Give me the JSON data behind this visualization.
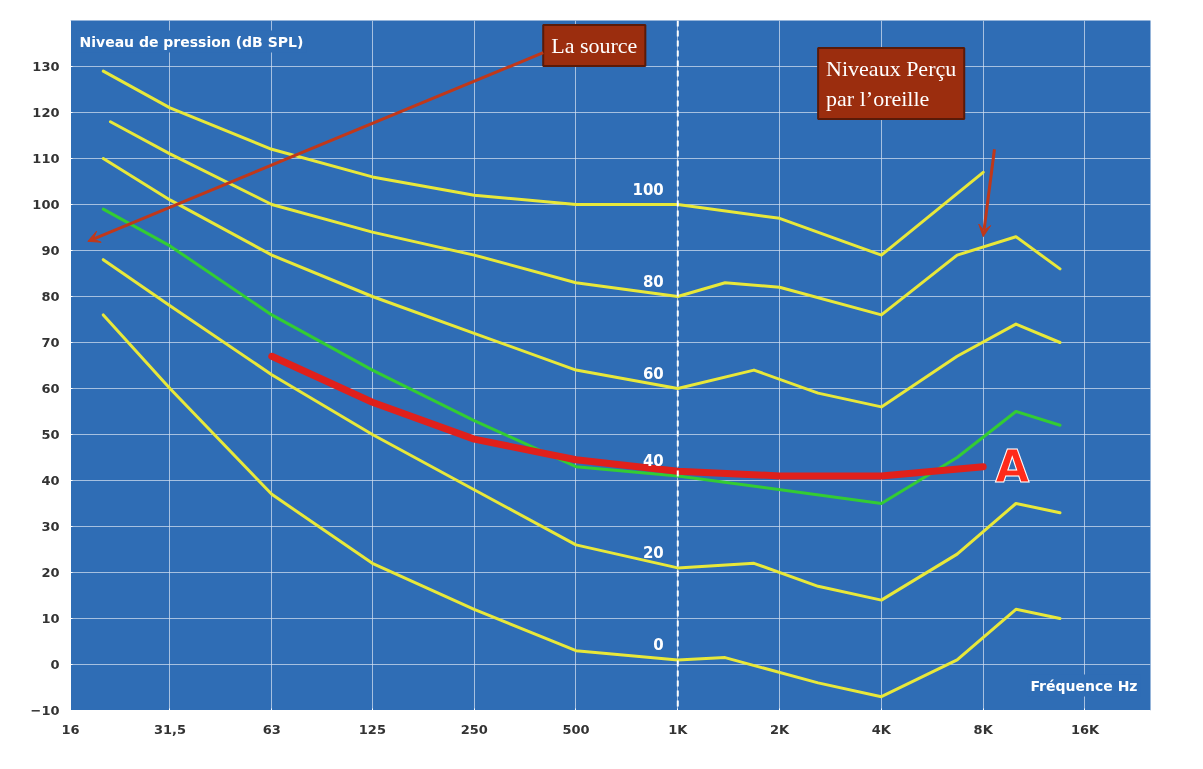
{
  "chart_data": {
    "type": "line",
    "xlabel": "Fréquence Hz",
    "ylabel": "Niveau de pression (dB SPL)",
    "log": "x",
    "grid": true,
    "xlim": [
      16,
      25000
    ],
    "ylim": [
      -10,
      140
    ],
    "xticks": [
      16,
      {
        "value": 31.5,
        "label": "31,5"
      },
      63,
      125,
      250,
      500,
      {
        "value": 1000,
        "label": "1K"
      },
      {
        "value": 2000,
        "label": "2K"
      },
      {
        "value": 4000,
        "label": "4K"
      },
      {
        "value": 8000,
        "label": "8K"
      },
      {
        "value": 16000,
        "label": "16K"
      }
    ],
    "yticks": [
      -10,
      0,
      10,
      20,
      30,
      40,
      50,
      60,
      70,
      80,
      90,
      100,
      110,
      120,
      130
    ],
    "series": [
      {
        "name": "100",
        "color": "#e8e83a",
        "x": [
          20,
          31.5,
          63,
          125,
          250,
          500,
          1000,
          2000,
          4000,
          8000
        ],
        "values": [
          129,
          121,
          112,
          106,
          102,
          100,
          100,
          97,
          89,
          107
        ]
      },
      {
        "name": "80",
        "color": "#e8e83a",
        "x": [
          21,
          31.5,
          63,
          125,
          250,
          500,
          1000,
          1380,
          2000,
          4000,
          6700,
          10000,
          13500
        ],
        "values": [
          118,
          111,
          100,
          94,
          89,
          83,
          80,
          83,
          82,
          76,
          89,
          93,
          86
        ]
      },
      {
        "name": "60",
        "color": "#e8e83a",
        "x": [
          20,
          31.5,
          63,
          125,
          250,
          500,
          1000,
          1680,
          2600,
          4000,
          6700,
          10000,
          13500
        ],
        "values": [
          110,
          101,
          89,
          80,
          72,
          64,
          60,
          64,
          59,
          56,
          67,
          74,
          70
        ]
      },
      {
        "name": "40",
        "color": "#33cc33",
        "x": [
          20,
          31.5,
          63,
          125,
          250,
          500,
          1000,
          2000,
          4000,
          6700,
          10000,
          13500
        ],
        "values": [
          99,
          91,
          76,
          64,
          53,
          43,
          41,
          null,
          35,
          45,
          55,
          52
        ]
      },
      {
        "name": "20",
        "color": "#e8e83a",
        "x": [
          20,
          31.5,
          63,
          125,
          250,
          500,
          1000,
          1680,
          2600,
          4000,
          6700,
          10000,
          13500
        ],
        "values": [
          88,
          78,
          63,
          50,
          38,
          26,
          21,
          22,
          17,
          14,
          24,
          35,
          33
        ]
      },
      {
        "name": "0",
        "color": "#e8e83a",
        "x": [
          20,
          31.5,
          63,
          125,
          250,
          500,
          1000,
          1380,
          2600,
          4000,
          6700,
          10000,
          13500
        ],
        "values": [
          76,
          60,
          37,
          22,
          12,
          3,
          1,
          1.5,
          -4,
          -7,
          1,
          12,
          10
        ]
      },
      {
        "name": "A",
        "color": "#e0201b",
        "x": [
          63,
          125,
          250,
          500,
          1000,
          2000,
          4000,
          8000
        ],
        "values": [
          67,
          57,
          49,
          44.5,
          42,
          41,
          41,
          43
        ]
      }
    ],
    "ref_lines": [
      {
        "axis": "x",
        "value": 1000,
        "color": "#ffffff",
        "line_style": "dashed"
      }
    ],
    "annotations": [
      "La source",
      "Niveaux Perçu par l’oreille"
    ]
  }
}
